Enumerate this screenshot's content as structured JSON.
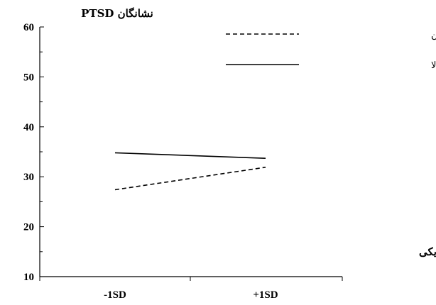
{
  "chart_data": {
    "type": "line",
    "title": "",
    "ylabel": "نشانگان PTSD",
    "xlabel": "خشونت فیزیکی",
    "categories": [
      "-1SD",
      "+1SD"
    ],
    "ylim": [
      10,
      60
    ],
    "yticks": [
      10,
      20,
      30,
      40,
      50,
      60
    ],
    "grid": false,
    "legend_position": "top-right",
    "series": [
      {
        "name": "حمایت اجتماعی پائین",
        "values": [
          27.4,
          31.9
        ],
        "style": "dashed",
        "color": "#000000"
      },
      {
        "name": "حمایت اجتماعی بالا",
        "values": [
          34.8,
          33.7
        ],
        "style": "solid",
        "color": "#000000"
      }
    ]
  }
}
